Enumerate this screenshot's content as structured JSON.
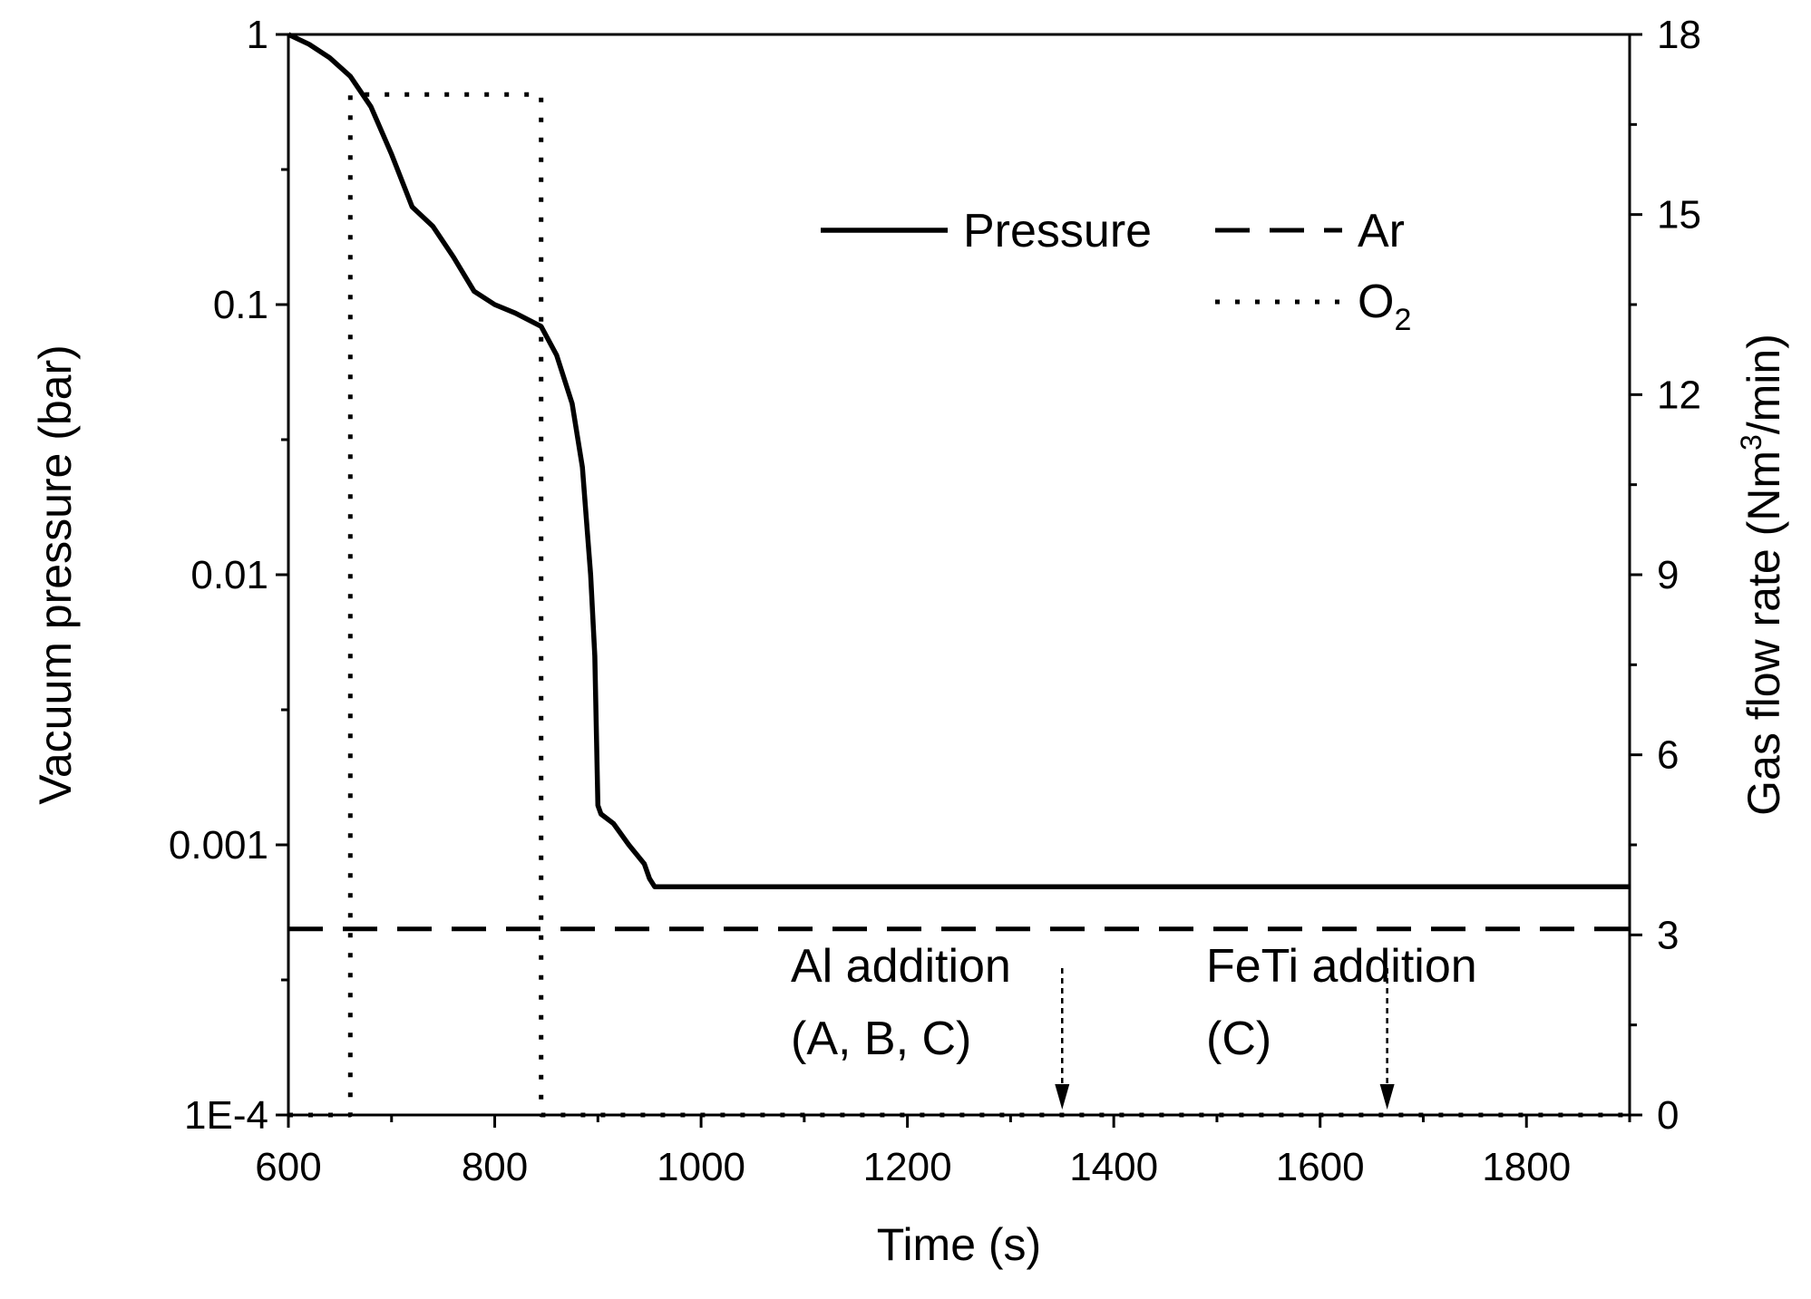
{
  "chart_data": {
    "type": "line",
    "x": {
      "label": "Time (s)",
      "lim": [
        600,
        1900
      ],
      "ticks": [
        600,
        800,
        1000,
        1200,
        1400,
        1600,
        1800
      ],
      "tick_labels": [
        "600",
        "800",
        "1000",
        "1200",
        "1400",
        "1600",
        "1800"
      ]
    },
    "y_left": {
      "label": "Vacuum pressure (bar)",
      "scale": "log",
      "lim": [
        0.0001,
        1
      ],
      "ticks": [
        0.0001,
        0.001,
        0.01,
        0.1,
        1
      ],
      "tick_labels": [
        "1E-4",
        "0.001",
        "0.01",
        "0.1",
        "1"
      ]
    },
    "y_right": {
      "label_main": "Gas flow rate (Nm",
      "label_sup": "3",
      "label_end": "/min)",
      "scale": "linear",
      "lim": [
        0,
        18
      ],
      "ticks": [
        0,
        3,
        6,
        9,
        12,
        15,
        18
      ],
      "tick_labels": [
        "0",
        "3",
        "6",
        "9",
        "12",
        "15",
        "18"
      ]
    },
    "legend": {
      "placement": "top-right",
      "pressure": "Pressure",
      "ar": "Ar",
      "o2_main": "O",
      "o2_sub": "2"
    },
    "series": [
      {
        "name": "Pressure",
        "axis": "left",
        "style": "solid",
        "points": [
          [
            600,
            1.0
          ],
          [
            620,
            0.92
          ],
          [
            640,
            0.82
          ],
          [
            660,
            0.7
          ],
          [
            680,
            0.54
          ],
          [
            700,
            0.36
          ],
          [
            720,
            0.23
          ],
          [
            740,
            0.195
          ],
          [
            760,
            0.15
          ],
          [
            780,
            0.112
          ],
          [
            800,
            0.1
          ],
          [
            820,
            0.093
          ],
          [
            845,
            0.083
          ],
          [
            860,
            0.065
          ],
          [
            875,
            0.043
          ],
          [
            885,
            0.025
          ],
          [
            893,
            0.01
          ],
          [
            897,
            0.005
          ],
          [
            900,
            0.0014
          ],
          [
            903,
            0.0013
          ],
          [
            915,
            0.0012
          ],
          [
            930,
            0.001
          ],
          [
            945,
            0.00085
          ],
          [
            950,
            0.00075
          ],
          [
            955,
            0.0007
          ],
          [
            1900,
            0.0007
          ]
        ]
      },
      {
        "name": "Ar",
        "axis": "right",
        "style": "dashed",
        "points": [
          [
            600,
            3.1
          ],
          [
            1900,
            3.1
          ]
        ]
      },
      {
        "name": "O2",
        "axis": "right",
        "style": "dotted",
        "points": [
          [
            600,
            0
          ],
          [
            660,
            0
          ],
          [
            660,
            17.0
          ],
          [
            845,
            17.0
          ],
          [
            845,
            0
          ],
          [
            1900,
            0
          ]
        ]
      }
    ],
    "annotations": [
      {
        "name": "al-addition",
        "lines": [
          "Al addition",
          "(A, B, C)"
        ],
        "x": 1350
      },
      {
        "name": "feti-addition",
        "lines": [
          "FeTi addition",
          "(C)"
        ],
        "x": 1665
      }
    ]
  }
}
